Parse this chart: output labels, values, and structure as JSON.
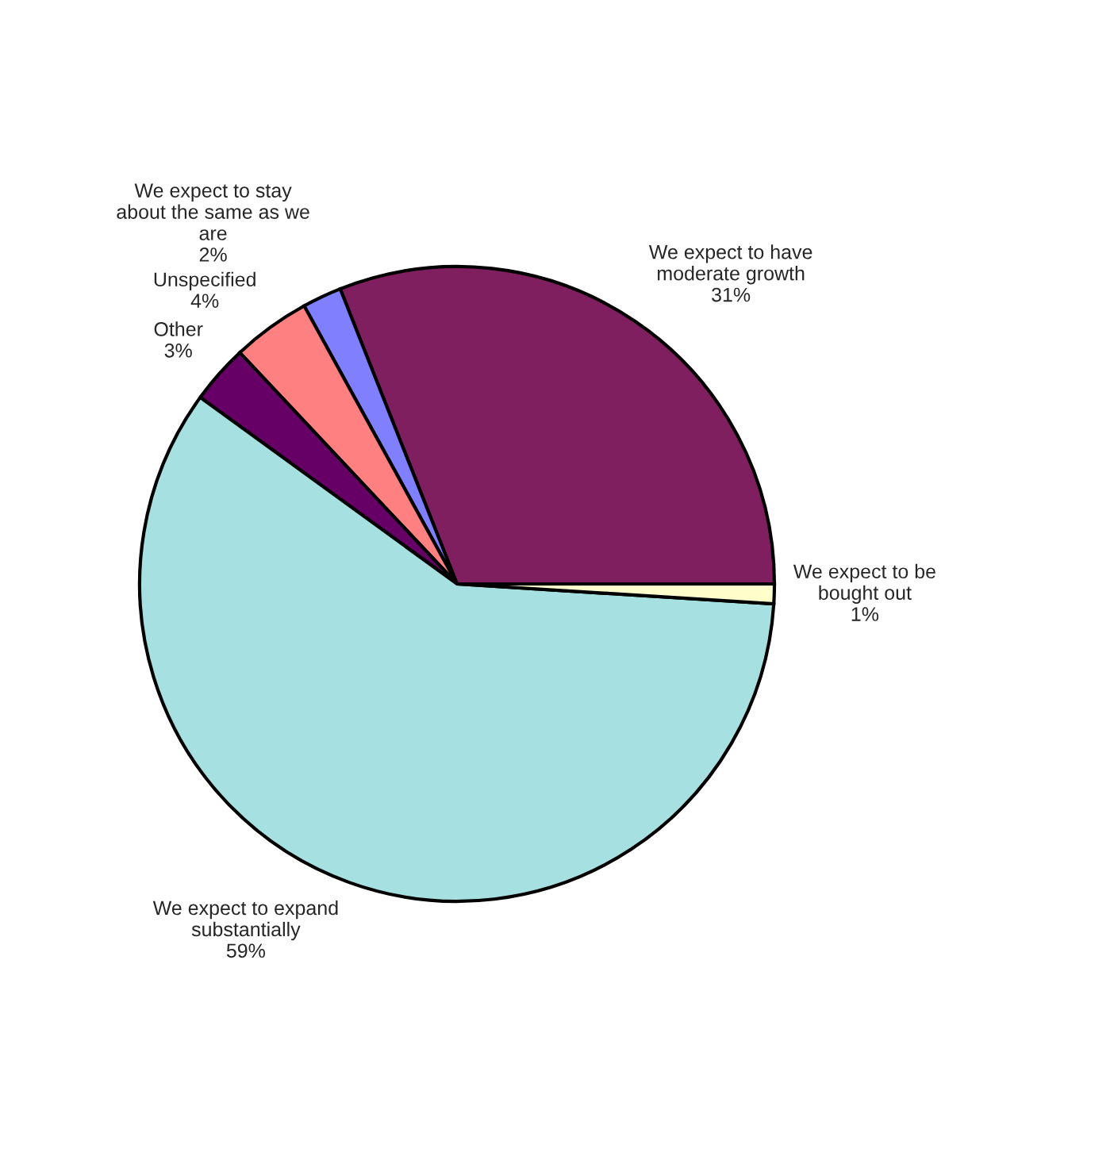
{
  "chart_data": {
    "type": "pie",
    "categories": [
      "We expect to have moderate growth",
      "We expect to stay about the same as we are",
      "Unspecified",
      "Other",
      "We expect to expand substantially",
      "We expect to be bought out"
    ],
    "values": [
      31,
      2,
      4,
      3,
      59,
      1
    ],
    "colors": [
      "#801f5f",
      "#8080ff",
      "#ff8080",
      "#660066",
      "#a6e0e0",
      "#ffffcc"
    ],
    "value_labels": [
      "31%",
      "2%",
      "4%",
      "3%",
      "59%",
      "1%"
    ],
    "legend": false
  }
}
